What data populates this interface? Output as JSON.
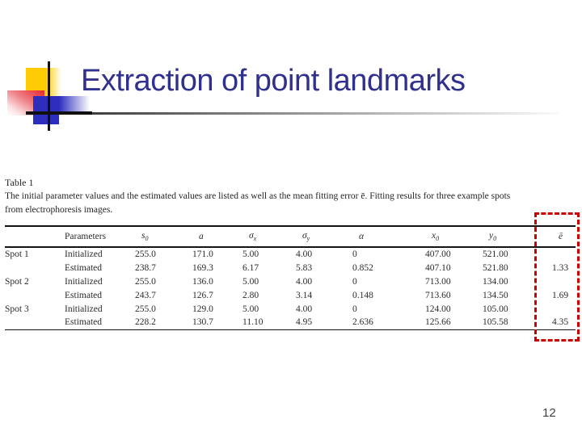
{
  "slide": {
    "title": "Extraction of point landmarks",
    "page_number": "12"
  },
  "colors": {
    "title_blue": "#30308e",
    "accent_yellow": "#ffcb05",
    "accent_red": "#e8242c",
    "accent_blue": "#2d2dbe",
    "highlight_red": "#cc0000"
  },
  "table_figure": {
    "label": "Table 1",
    "caption_lines": [
      "The initial parameter values and the estimated values are listed as well as the mean fitting error ē. Fitting results for three example spots",
      "from electrophoresis images."
    ],
    "headers": [
      {
        "base": "",
        "sub": "",
        "italic": false
      },
      {
        "base": "Parameters",
        "sub": "",
        "italic": false
      },
      {
        "base": "s",
        "sub": "0",
        "italic": true
      },
      {
        "base": "a",
        "sub": "",
        "italic": true
      },
      {
        "base": "σ",
        "sub": "x",
        "italic": true
      },
      {
        "base": "σ",
        "sub": "y",
        "italic": true
      },
      {
        "base": "α",
        "sub": "",
        "italic": true
      },
      {
        "base": "x",
        "sub": "0",
        "italic": true
      },
      {
        "base": "y",
        "sub": "0",
        "italic": true
      },
      {
        "base": "ē",
        "sub": "",
        "italic": true
      }
    ],
    "rows": [
      [
        "Spot 1",
        "Initialized",
        "255.0",
        "171.0",
        "5.00",
        "4.00",
        "0",
        "407.00",
        "521.00",
        ""
      ],
      [
        "",
        "Estimated",
        "238.7",
        "169.3",
        "6.17",
        "5.83",
        "0.852",
        "407.10",
        "521.80",
        "1.33"
      ],
      [
        "Spot 2",
        "Initialized",
        "255.0",
        "136.0",
        "5.00",
        "4.00",
        "0",
        "713.00",
        "134.00",
        ""
      ],
      [
        "",
        "Estimated",
        "243.7",
        "126.7",
        "2.80",
        "3.14",
        "0.148",
        "713.60",
        "134.50",
        "1.69"
      ],
      [
        "Spot 3",
        "Initialized",
        "255.0",
        "129.0",
        "5.00",
        "4.00",
        "0",
        "124.00",
        "105.00",
        ""
      ],
      [
        "",
        "Estimated",
        "228.2",
        "130.7",
        "11.10",
        "4.95",
        "2.636",
        "125.66",
        "105.58",
        "4.35"
      ]
    ]
  }
}
